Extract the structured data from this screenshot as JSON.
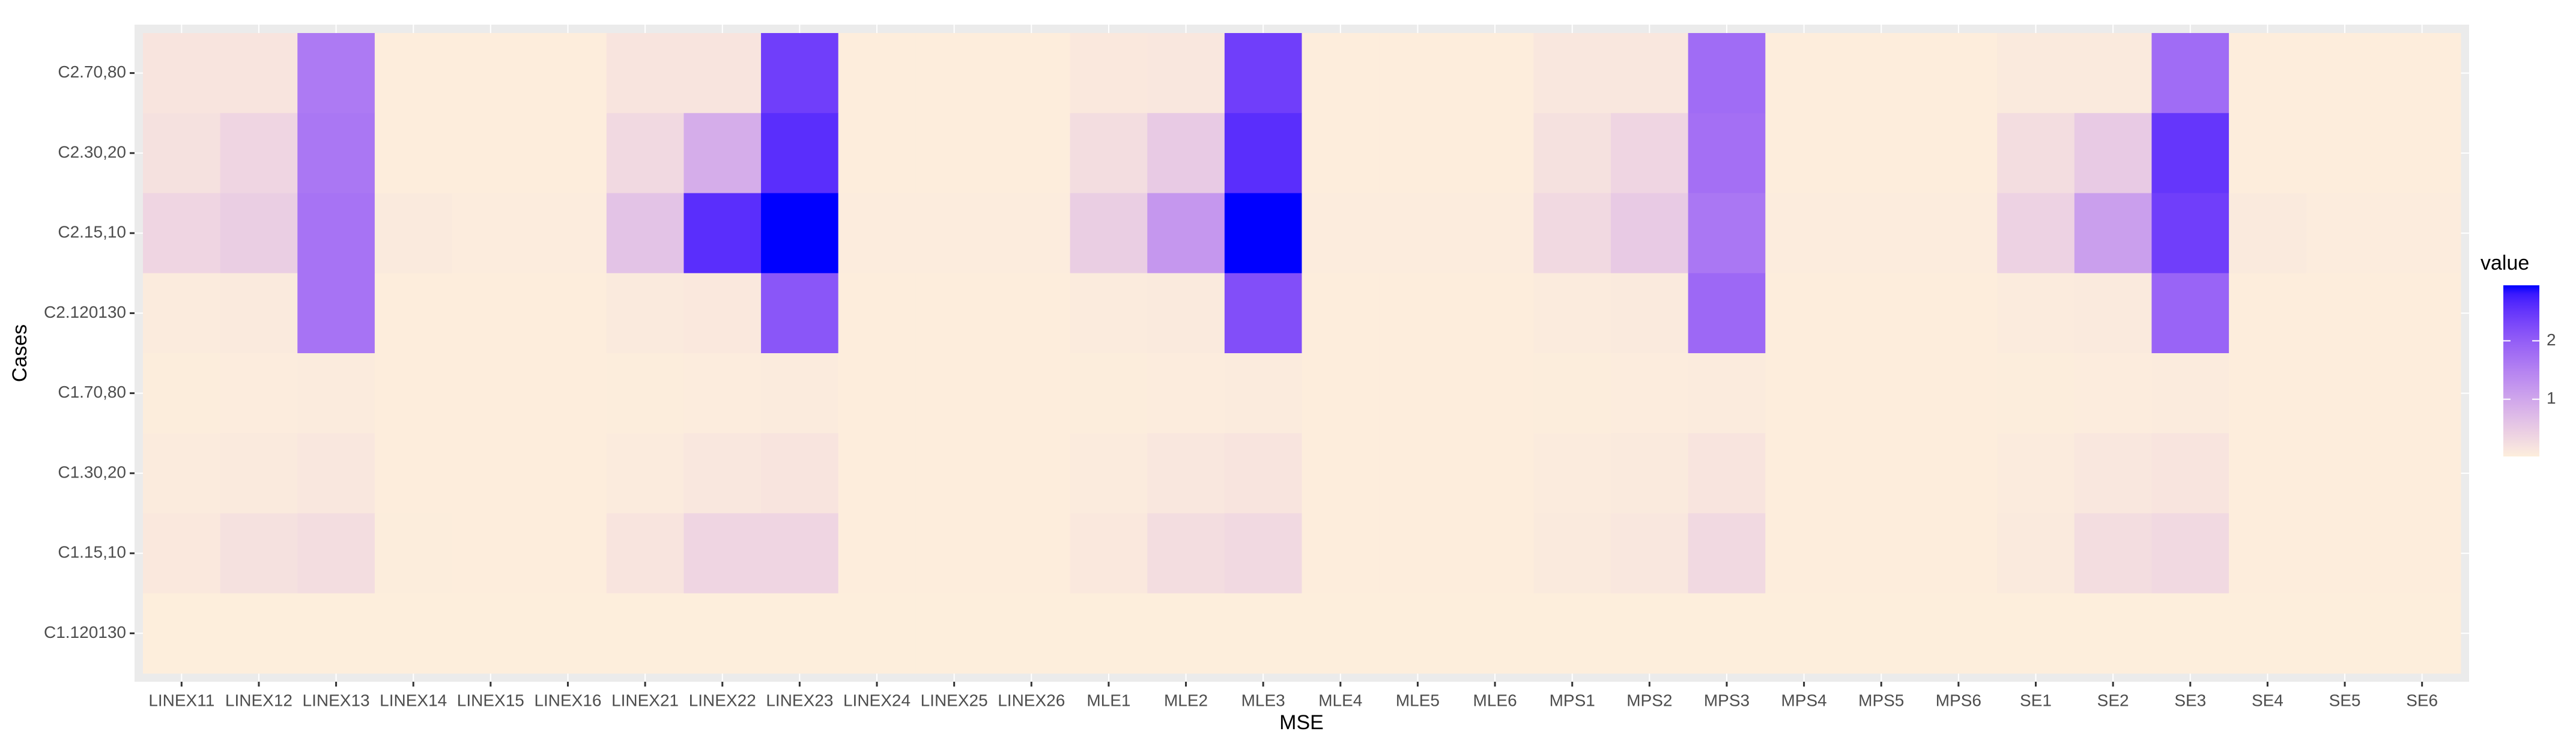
{
  "chart_data": {
    "type": "heatmap",
    "x_label": "MSE",
    "y_label": "Cases",
    "legend_title": "value",
    "categories": [
      "LINEX11",
      "LINEX12",
      "LINEX13",
      "LINEX14",
      "LINEX15",
      "LINEX16",
      "LINEX21",
      "LINEX22",
      "LINEX23",
      "LINEX24",
      "LINEX25",
      "LINEX26",
      "MLE1",
      "MLE2",
      "MLE3",
      "MLE4",
      "MLE5",
      "MLE6",
      "MPS1",
      "MPS2",
      "MPS3",
      "MPS4",
      "MPS5",
      "MPS6",
      "SE1",
      "SE2",
      "SE3",
      "SE4",
      "SE5",
      "SE6"
    ],
    "y_categories": [
      "C2.70,80",
      "C2.30,20",
      "C2.15,10",
      "C2.120130",
      "C1.70,80",
      "C1.30,20",
      "C1.15,10",
      "C1.120130"
    ],
    "values": [
      [
        0.15,
        0.15,
        1.6,
        0.03,
        0.03,
        0.03,
        0.15,
        0.15,
        2.4,
        0.03,
        0.03,
        0.03,
        0.1,
        0.12,
        2.4,
        0.03,
        0.03,
        0.03,
        0.12,
        0.12,
        1.8,
        0.03,
        0.03,
        0.03,
        0.08,
        0.08,
        1.8,
        0.03,
        0.03,
        0.03
      ],
      [
        0.2,
        0.35,
        1.65,
        0.03,
        0.03,
        0.03,
        0.3,
        0.9,
        2.6,
        0.03,
        0.03,
        0.03,
        0.25,
        0.5,
        2.6,
        0.03,
        0.03,
        0.03,
        0.2,
        0.35,
        1.75,
        0.03,
        0.03,
        0.03,
        0.25,
        0.5,
        2.5,
        0.03,
        0.03,
        0.03
      ],
      [
        0.35,
        0.45,
        1.7,
        0.08,
        0.05,
        0.05,
        0.6,
        2.6,
        2.95,
        0.05,
        0.05,
        0.05,
        0.45,
        1.2,
        2.95,
        0.05,
        0.05,
        0.05,
        0.3,
        0.5,
        1.65,
        0.05,
        0.05,
        0.05,
        0.4,
        1.1,
        2.4,
        0.08,
        0.05,
        0.05
      ],
      [
        0.06,
        0.08,
        1.7,
        0.03,
        0.03,
        0.03,
        0.08,
        0.1,
        2.1,
        0.03,
        0.03,
        0.03,
        0.06,
        0.08,
        2.2,
        0.03,
        0.03,
        0.03,
        0.06,
        0.08,
        1.85,
        0.03,
        0.03,
        0.03,
        0.06,
        0.08,
        1.9,
        0.03,
        0.03,
        0.03
      ],
      [
        0.04,
        0.05,
        0.06,
        0.03,
        0.03,
        0.03,
        0.04,
        0.05,
        0.06,
        0.03,
        0.03,
        0.03,
        0.04,
        0.05,
        0.06,
        0.03,
        0.03,
        0.03,
        0.04,
        0.05,
        0.06,
        0.03,
        0.03,
        0.03,
        0.04,
        0.05,
        0.06,
        0.03,
        0.03,
        0.03
      ],
      [
        0.06,
        0.08,
        0.12,
        0.03,
        0.03,
        0.03,
        0.06,
        0.12,
        0.15,
        0.03,
        0.03,
        0.03,
        0.06,
        0.12,
        0.15,
        0.03,
        0.03,
        0.03,
        0.06,
        0.08,
        0.15,
        0.03,
        0.03,
        0.03,
        0.06,
        0.12,
        0.15,
        0.03,
        0.03,
        0.03
      ],
      [
        0.1,
        0.2,
        0.25,
        0.04,
        0.03,
        0.03,
        0.15,
        0.35,
        0.35,
        0.03,
        0.03,
        0.03,
        0.1,
        0.25,
        0.3,
        0.03,
        0.03,
        0.03,
        0.08,
        0.12,
        0.3,
        0.03,
        0.03,
        0.03,
        0.08,
        0.25,
        0.3,
        0.03,
        0.03,
        0.03
      ],
      [
        0.02,
        0.02,
        0.02,
        0.02,
        0.02,
        0.02,
        0.02,
        0.02,
        0.02,
        0.02,
        0.02,
        0.02,
        0.02,
        0.02,
        0.02,
        0.02,
        0.02,
        0.02,
        0.02,
        0.02,
        0.02,
        0.02,
        0.02,
        0.02,
        0.02,
        0.02,
        0.02,
        0.02,
        0.02,
        0.02
      ]
    ],
    "low_color": "#fdeedc",
    "high_color": "#0000ff",
    "legend_ticks": [
      1,
      2
    ],
    "legend_position": "right"
  }
}
